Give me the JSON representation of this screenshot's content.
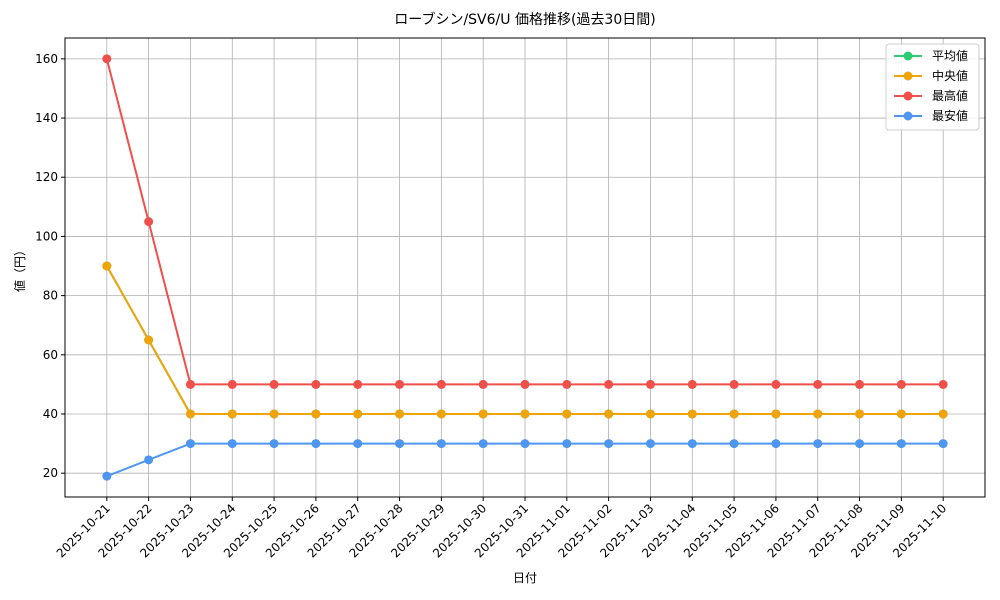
{
  "chart_data": {
    "type": "line",
    "title": "ローブシン/SV6/U 価格推移(過去30日間)",
    "x_label": "日付",
    "y_label": "値（円）",
    "categories": [
      "2025-10-21",
      "2025-10-22",
      "2025-10-23",
      "2025-10-24",
      "2025-10-25",
      "2025-10-26",
      "2025-10-27",
      "2025-10-28",
      "2025-10-29",
      "2025-10-30",
      "2025-10-31",
      "2025-11-01",
      "2025-11-02",
      "2025-11-03",
      "2025-11-04",
      "2025-11-05",
      "2025-11-06",
      "2025-11-07",
      "2025-11-08",
      "2025-11-09",
      "2025-11-10"
    ],
    "series": [
      {
        "name": "平均値",
        "color": "#2ecc71",
        "values": [
          90,
          65,
          40,
          40,
          40,
          40,
          40,
          40,
          40,
          40,
          40,
          40,
          40,
          40,
          40,
          40,
          40,
          40,
          40,
          40,
          40
        ]
      },
      {
        "name": "中央値",
        "color": "#f0a30a",
        "values": [
          90,
          65,
          40,
          40,
          40,
          40,
          40,
          40,
          40,
          40,
          40,
          40,
          40,
          40,
          40,
          40,
          40,
          40,
          40,
          40,
          40
        ]
      },
      {
        "name": "最高値",
        "color": "#f0504a",
        "values": [
          160,
          105,
          50,
          50,
          50,
          50,
          50,
          50,
          50,
          50,
          50,
          50,
          50,
          50,
          50,
          50,
          50,
          50,
          50,
          50,
          50
        ]
      },
      {
        "name": "最安値",
        "color": "#4f96f0",
        "values": [
          19,
          24.5,
          30,
          30,
          30,
          30,
          30,
          30,
          30,
          30,
          30,
          30,
          30,
          30,
          30,
          30,
          30,
          30,
          30,
          30,
          30
        ]
      }
    ],
    "ylim": [
      11.95,
      167.05
    ],
    "yticks": [
      20,
      40,
      60,
      80,
      100,
      120,
      140,
      160
    ],
    "grid": true,
    "legend": "upper right"
  }
}
